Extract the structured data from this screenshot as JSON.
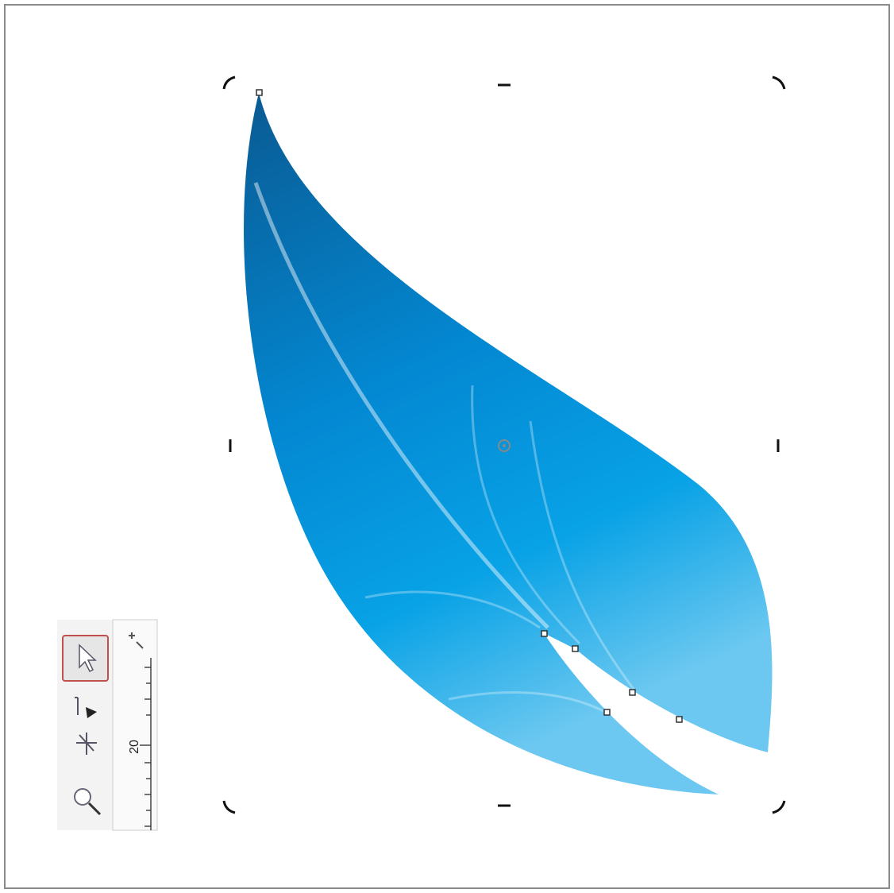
{
  "ruler": {
    "label": "20"
  }
}
